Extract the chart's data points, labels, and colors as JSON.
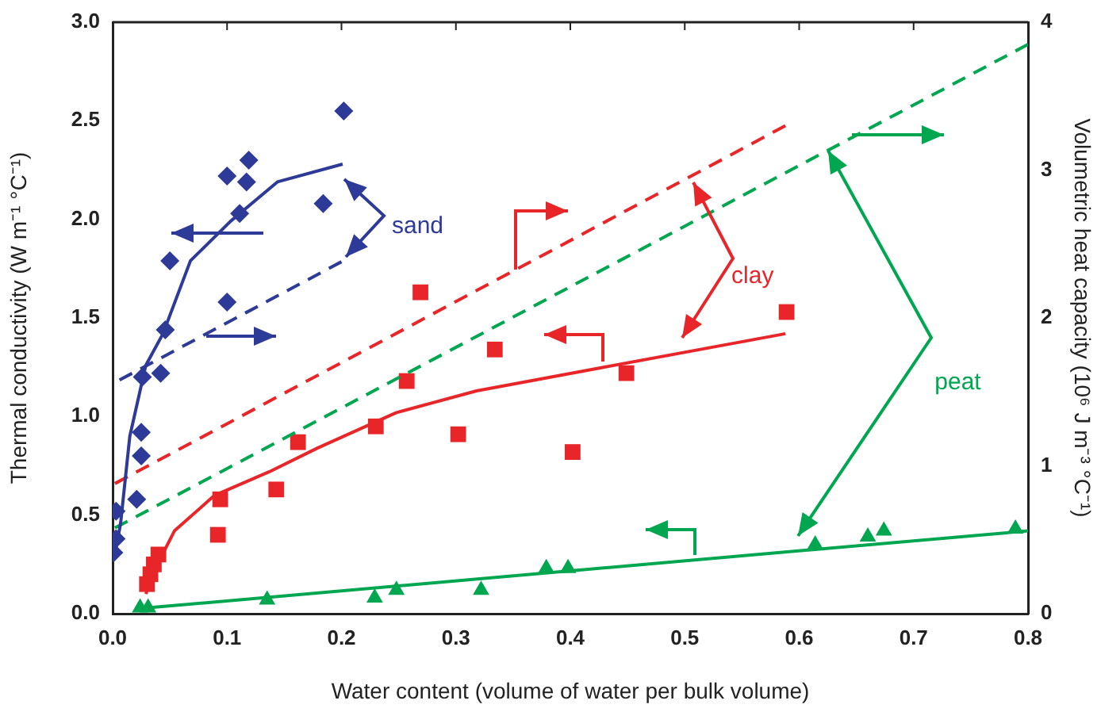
{
  "chart_data": {
    "type": "scatter",
    "xlabel": "Water content (volume of water per bulk volume)",
    "ylabel": "Thermal conductivity (W m⁻¹ °C⁻¹)",
    "y2label": "Volumetric heat capacity (10⁶ J m⁻³ °C⁻¹)",
    "xlim": [
      0,
      0.8
    ],
    "xticks": [
      {
        "value": 0,
        "label": "0.0"
      },
      0.1,
      0.2,
      0.3,
      0.4,
      0.5,
      0.6,
      0.7,
      0.8
    ],
    "ylim": [
      0,
      3
    ],
    "yticks": [
      {
        "value": 0,
        "label": "0.0"
      },
      0.5,
      {
        "value": 1,
        "label": "1.0"
      },
      1.5,
      {
        "value": 2,
        "label": "2.0"
      },
      2.5,
      {
        "value": 3,
        "label": "3.0"
      }
    ],
    "y2lim": [
      0,
      4
    ],
    "y2ticks": [
      0,
      1,
      2,
      3,
      4
    ],
    "legend": false,
    "series": [
      {
        "type": "scatter",
        "marker": "diamond",
        "color": "#2e3a97",
        "x": [
          0.001,
          0.003,
          0.003,
          0.021,
          0.025,
          0.025,
          0.026,
          0.042,
          0.046,
          0.05,
          0.1,
          0.1,
          0.111,
          0.117,
          0.119,
          0.184,
          0.202
        ],
        "values": [
          0.31,
          0.38,
          0.52,
          0.58,
          0.8,
          0.92,
          1.2,
          1.22,
          1.44,
          1.79,
          1.58,
          2.22,
          2.03,
          2.19,
          2.3,
          2.08,
          2.55
        ]
      },
      {
        "type": "line",
        "line_style": "solid",
        "color": "#2e3a97",
        "x": [
          0.003,
          0.007,
          0.015,
          0.029,
          0.044,
          0.068,
          0.103,
          0.144,
          0.201
        ],
        "values": [
          0.33,
          0.46,
          0.9,
          1.26,
          1.42,
          1.79,
          1.99,
          2.19,
          2.28
        ]
      },
      {
        "type": "line",
        "line_style": "dashed",
        "axis": "y2",
        "color": "#2e3a97",
        "x": [
          0.006,
          0.2
        ],
        "values": [
          1.58,
          2.38
        ]
      },
      {
        "type": "scatter",
        "marker": "square",
        "color": "#e8262a",
        "x": [
          0.03,
          0.033,
          0.036,
          0.04,
          0.092,
          0.094,
          0.143,
          0.162,
          0.23,
          0.257,
          0.269,
          0.302,
          0.334,
          0.402,
          0.449,
          0.589
        ],
        "values": [
          0.15,
          0.2,
          0.25,
          0.3,
          0.4,
          0.58,
          0.63,
          0.87,
          0.95,
          1.18,
          1.63,
          0.91,
          1.34,
          0.82,
          1.22,
          1.53
        ]
      },
      {
        "type": "line",
        "line_style": "solid",
        "color": "#e8262a",
        "x": [
          0.029,
          0.04,
          0.054,
          0.089,
          0.137,
          0.179,
          0.248,
          0.318,
          0.429,
          0.588
        ],
        "values": [
          0.1,
          0.26,
          0.42,
          0.6,
          0.72,
          0.84,
          1.02,
          1.13,
          1.25,
          1.42
        ]
      },
      {
        "type": "line",
        "line_style": "dashed",
        "axis": "y2",
        "color": "#e8262a",
        "x": [
          0.002,
          0.588
        ],
        "values": [
          0.88,
          3.3
        ]
      },
      {
        "type": "scatter",
        "marker": "triangle",
        "color": "#00a650",
        "x": [
          0.024,
          0.031,
          0.135,
          0.229,
          0.248,
          0.322,
          0.379,
          0.398,
          0.614,
          0.66,
          0.674,
          0.789
        ],
        "values": [
          0.03,
          0.03,
          0.07,
          0.08,
          0.12,
          0.12,
          0.23,
          0.23,
          0.35,
          0.39,
          0.42,
          0.43
        ]
      },
      {
        "type": "line",
        "line_style": "solid",
        "color": "#00a650",
        "x": [
          0.031,
          0.8
        ],
        "values": [
          0.03,
          0.42
        ]
      },
      {
        "type": "line",
        "line_style": "dashed",
        "axis": "y2",
        "color": "#00a650",
        "x": [
          0.002,
          0.8
        ],
        "values": [
          0.58,
          3.85
        ]
      }
    ],
    "annotations": [
      "sand",
      "clay",
      "peat"
    ]
  }
}
